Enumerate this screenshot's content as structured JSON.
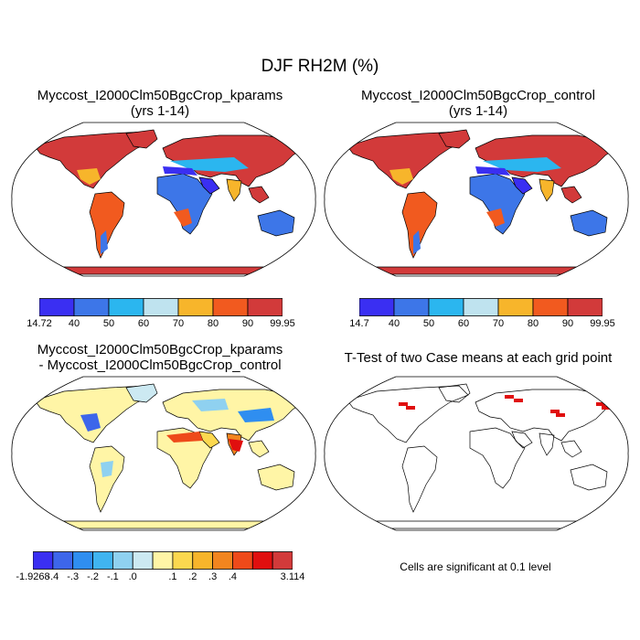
{
  "figure_title": "DJF RH2M (%)",
  "panels": [
    {
      "id": "kparams",
      "title_lines": [
        "Myccost_I2000Clm50BgcCrop_kparams",
        "(yrs 1-14)"
      ]
    },
    {
      "id": "control",
      "title_lines": [
        "Myccost_I2000Clm50BgcCrop_control",
        "(yrs 1-14)"
      ]
    },
    {
      "id": "difference",
      "title_lines": [
        "Myccost_I2000Clm50BgcCrop_kparams",
        "- Myccost_I2000Clm50BgcCrop_control"
      ]
    },
    {
      "id": "ttest",
      "title_lines": [
        "T-Test of two Case means at each grid point"
      ]
    }
  ],
  "colorbars": {
    "kparams": {
      "labels": [
        "14.72",
        "40",
        "50",
        "60",
        "70",
        "80",
        "90",
        "99.95"
      ],
      "colors": [
        "#3a2ff2",
        "#3d76e8",
        "#2bb6ef",
        "#bfe3ef",
        "#f7b52b",
        "#f15a1f",
        "#d23a3a"
      ]
    },
    "control": {
      "labels": [
        "14.7",
        "40",
        "50",
        "60",
        "70",
        "80",
        "90",
        "99.95"
      ],
      "colors": [
        "#3a2ff2",
        "#3d76e8",
        "#2bb6ef",
        "#bfe3ef",
        "#f7b52b",
        "#f15a1f",
        "#d23a3a"
      ]
    },
    "difference": {
      "labels": [
        "-1.9268",
        "-.4",
        "-.3",
        "-.2",
        "-.1",
        ".0",
        ".1",
        ".2",
        ".3",
        ".4",
        "3.114"
      ],
      "colors": [
        "#3a2ff2",
        "#3d66ea",
        "#2f8ef0",
        "#40b4f0",
        "#8fd1f0",
        "#cce9f2",
        "#fff5a6",
        "#fbd84f",
        "#f7b52b",
        "#f2851f",
        "#ee4a1a",
        "#e00f0f",
        "#d23a3a"
      ]
    }
  },
  "footnote": "Cells are significant at 0.1 level"
}
